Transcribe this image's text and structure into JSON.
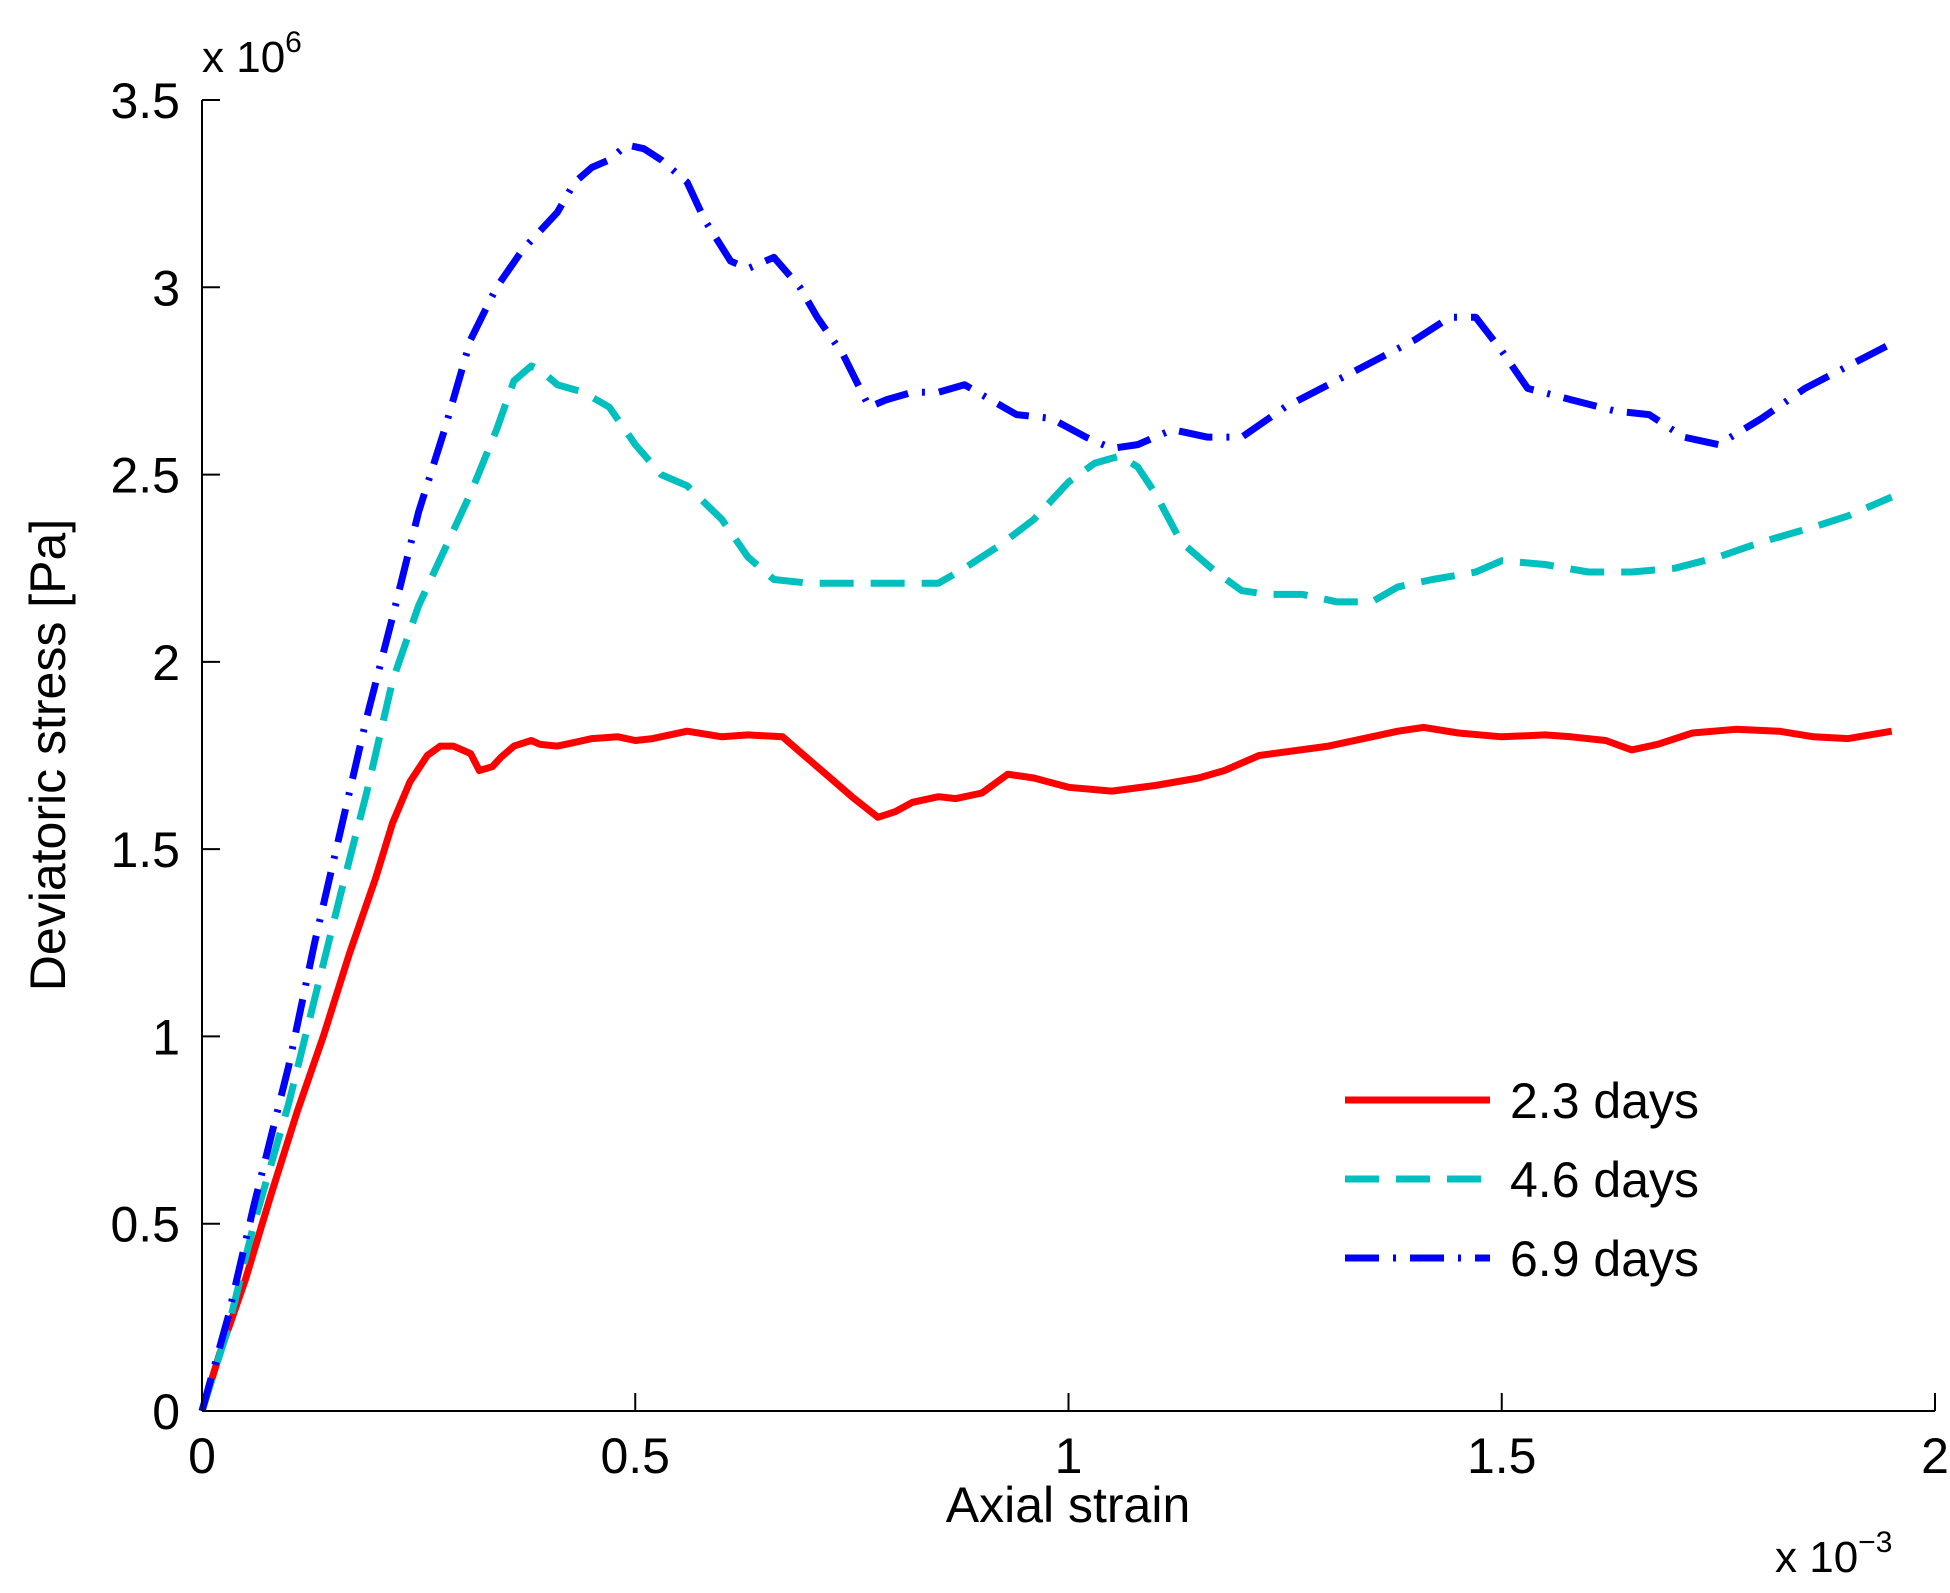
{
  "chart_data": {
    "type": "line",
    "title": "",
    "xlabel": "Axial strain",
    "ylabel": "Deviatoric stress [Pa]",
    "x_multiplier": "x 10",
    "x_multiplier_exp": "−3",
    "y_multiplier": "x 10",
    "y_multiplier_exp": "6",
    "xlim": [
      0,
      2
    ],
    "ylim": [
      0,
      3.5
    ],
    "x_ticks": [
      0,
      0.5,
      1,
      1.5,
      2
    ],
    "x_tick_labels": [
      "0",
      "0.5",
      "1",
      "1.5",
      "2"
    ],
    "y_ticks": [
      0,
      0.5,
      1,
      1.5,
      2,
      2.5,
      3,
      3.5
    ],
    "y_tick_labels": [
      "0",
      "0.5",
      "1",
      "1.5",
      "2",
      "2.5",
      "3",
      "3.5"
    ],
    "grid": false,
    "legend_position": "bottom-right",
    "series": [
      {
        "name": "2.3 days",
        "color": "#ff0000",
        "style": "solid",
        "x": [
          0,
          0.02,
          0.05,
          0.08,
          0.11,
          0.14,
          0.17,
          0.2,
          0.22,
          0.24,
          0.26,
          0.275,
          0.29,
          0.31,
          0.32,
          0.335,
          0.345,
          0.36,
          0.38,
          0.39,
          0.41,
          0.43,
          0.45,
          0.48,
          0.5,
          0.52,
          0.56,
          0.6,
          0.63,
          0.67,
          0.69,
          0.72,
          0.75,
          0.78,
          0.8,
          0.82,
          0.85,
          0.87,
          0.9,
          0.93,
          0.96,
          1.0,
          1.05,
          1.1,
          1.15,
          1.18,
          1.22,
          1.3,
          1.35,
          1.38,
          1.41,
          1.45,
          1.5,
          1.55,
          1.58,
          1.62,
          1.65,
          1.68,
          1.72,
          1.77,
          1.82,
          1.86,
          1.9,
          1.95
        ],
        "y": [
          0,
          0.15,
          0.35,
          0.58,
          0.8,
          1.0,
          1.22,
          1.42,
          1.57,
          1.68,
          1.75,
          1.775,
          1.775,
          1.755,
          1.71,
          1.72,
          1.745,
          1.775,
          1.79,
          1.78,
          1.775,
          1.785,
          1.795,
          1.8,
          1.79,
          1.795,
          1.815,
          1.8,
          1.805,
          1.8,
          1.76,
          1.7,
          1.64,
          1.585,
          1.6,
          1.625,
          1.64,
          1.635,
          1.65,
          1.7,
          1.69,
          1.665,
          1.655,
          1.67,
          1.69,
          1.71,
          1.75,
          1.775,
          1.8,
          1.815,
          1.825,
          1.81,
          1.8,
          1.805,
          1.8,
          1.79,
          1.765,
          1.78,
          1.81,
          1.82,
          1.815,
          1.8,
          1.795,
          1.815
        ]
      },
      {
        "name": "4.6 days",
        "color": "#00bfbf",
        "style": "dashed",
        "x": [
          0,
          0.03,
          0.06,
          0.1,
          0.13,
          0.16,
          0.19,
          0.22,
          0.25,
          0.28,
          0.31,
          0.34,
          0.36,
          0.38,
          0.39,
          0.41,
          0.44,
          0.47,
          0.5,
          0.53,
          0.56,
          0.6,
          0.63,
          0.66,
          0.7,
          0.75,
          0.8,
          0.85,
          0.88,
          0.92,
          0.96,
          1.0,
          1.03,
          1.06,
          1.08,
          1.1,
          1.13,
          1.17,
          1.2,
          1.23,
          1.27,
          1.31,
          1.35,
          1.38,
          1.42,
          1.47,
          1.5,
          1.55,
          1.6,
          1.65,
          1.7,
          1.75,
          1.8,
          1.86,
          1.9,
          1.95
        ],
        "y": [
          0,
          0.22,
          0.5,
          0.82,
          1.1,
          1.38,
          1.65,
          1.95,
          2.15,
          2.3,
          2.45,
          2.62,
          2.75,
          2.79,
          2.78,
          2.74,
          2.72,
          2.68,
          2.58,
          2.5,
          2.47,
          2.38,
          2.28,
          2.22,
          2.21,
          2.21,
          2.21,
          2.21,
          2.25,
          2.31,
          2.38,
          2.48,
          2.53,
          2.55,
          2.52,
          2.45,
          2.32,
          2.24,
          2.19,
          2.18,
          2.18,
          2.16,
          2.16,
          2.2,
          2.22,
          2.24,
          2.27,
          2.26,
          2.24,
          2.24,
          2.25,
          2.28,
          2.32,
          2.36,
          2.39,
          2.44
        ]
      },
      {
        "name": "6.9 days",
        "color": "#0000ff",
        "style": "dashdot",
        "x": [
          0,
          0.03,
          0.06,
          0.1,
          0.13,
          0.16,
          0.19,
          0.22,
          0.25,
          0.28,
          0.31,
          0.34,
          0.37,
          0.39,
          0.41,
          0.43,
          0.45,
          0.47,
          0.49,
          0.51,
          0.53,
          0.56,
          0.58,
          0.61,
          0.63,
          0.66,
          0.69,
          0.71,
          0.74,
          0.77,
          0.79,
          0.82,
          0.85,
          0.88,
          0.91,
          0.94,
          0.98,
          1.02,
          1.05,
          1.08,
          1.12,
          1.16,
          1.2,
          1.25,
          1.3,
          1.35,
          1.4,
          1.44,
          1.47,
          1.5,
          1.53,
          1.58,
          1.63,
          1.67,
          1.71,
          1.75,
          1.8,
          1.85,
          1.9,
          1.95
        ],
        "y": [
          0,
          0.25,
          0.55,
          0.92,
          1.25,
          1.55,
          1.85,
          2.12,
          2.4,
          2.62,
          2.86,
          3.0,
          3.1,
          3.15,
          3.2,
          3.28,
          3.32,
          3.34,
          3.38,
          3.37,
          3.34,
          3.28,
          3.18,
          3.07,
          3.05,
          3.08,
          3.0,
          2.92,
          2.82,
          2.68,
          2.7,
          2.72,
          2.72,
          2.74,
          2.7,
          2.66,
          2.65,
          2.6,
          2.57,
          2.58,
          2.62,
          2.6,
          2.6,
          2.68,
          2.74,
          2.8,
          2.86,
          2.92,
          2.92,
          2.83,
          2.73,
          2.7,
          2.67,
          2.66,
          2.6,
          2.58,
          2.65,
          2.73,
          2.79,
          2.85
        ]
      }
    ]
  }
}
